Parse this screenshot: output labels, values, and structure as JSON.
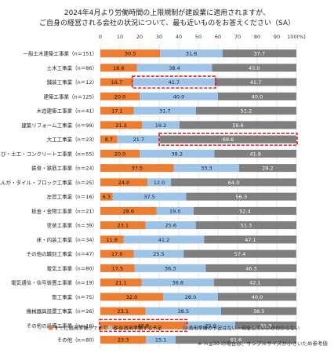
{
  "chart_data": {
    "type": "bar",
    "stacked": true,
    "orientation": "horizontal",
    "title": [
      "2024年4月より労働時間の上限規制が建設業に適用されますが、",
      "ご自身の経営される会社の状況について、最も近いものをお答えください（SA）"
    ],
    "xlim": [
      0,
      100
    ],
    "x_ticks": [
      "0",
      "10",
      "20",
      "30",
      "40",
      "50",
      "60",
      "70",
      "80",
      "90",
      "100(%)"
    ],
    "grid": true,
    "legend_position": "bottom",
    "categories": [
      "一般土木建築工事業（n＝151）",
      "土木工事業（n＝86）",
      "舗装工事業（n＝12）",
      "建築工事業（n＝125）",
      "木造建築工事業（n＝41）",
      "建築リフォーム工事業（n＝99）",
      "大工工事業（n＝23）",
      "とび・土工・コンクリート工事業（n＝55）",
      "鉄骨・鉄筋工事業（n＝24）",
      "石工・れんが・タイル・ブロック工事業（n＝25）",
      "左官工事業（n＝16）",
      "板金・金物工事業（n＝21）",
      "塗装工事業（n＝39）",
      "床・内装工事業（n＝34）",
      "その他の職別工事業（n＝47）",
      "電気工事業（n＝80）",
      "電気通信・信号装置工事業（n＝19）",
      "管工事業（n＝75）",
      "機械器具設置工事業（n＝26）",
      "その他の設備工事業（n＝16）",
      "その他（n＝80）"
    ],
    "series": [
      {
        "name": "すでに適用準備ができている",
        "color": "#ed7d31",
        "values": [
          30.5,
          18.6,
          16.7,
          20.0,
          17.1,
          21.2,
          8.7,
          20.0,
          37.5,
          24.0,
          6.3,
          28.6,
          23.1,
          11.8,
          17.0,
          17.5,
          21.1,
          32.0,
          23.1,
          43.8,
          23.3
        ]
      },
      {
        "name": "今後適用準備する予定",
        "color": "#9dc3e6",
        "values": [
          31.8,
          38.4,
          41.7,
          40.0,
          31.7,
          19.2,
          21.7,
          38.2,
          33.3,
          12.0,
          37.5,
          19.0,
          25.6,
          41.2,
          25.5,
          36.3,
          36.8,
          28.0,
          38.5,
          25.0,
          15.1
        ]
      },
      {
        "name": "適用準備の予定はない・何をしていいかわからない",
        "color": "#7f7f7f",
        "values": [
          37.7,
          43.0,
          41.7,
          40.0,
          51.2,
          59.6,
          69.6,
          41.8,
          29.2,
          64.0,
          56.3,
          52.4,
          51.3,
          47.1,
          57.4,
          46.3,
          42.1,
          40.0,
          38.5,
          31.3,
          61.6
        ]
      }
    ],
    "highlight_color": "#e0181d",
    "highlights": [
      {
        "category_index": 2,
        "series_index": 1
      },
      {
        "category_index": 6,
        "series_index": 2
      },
      {
        "category_index": 19,
        "series_index": 0
      }
    ],
    "footnote": "※ ｎ≦30 の場合は、サンプルサイズが小さいため参考値"
  }
}
